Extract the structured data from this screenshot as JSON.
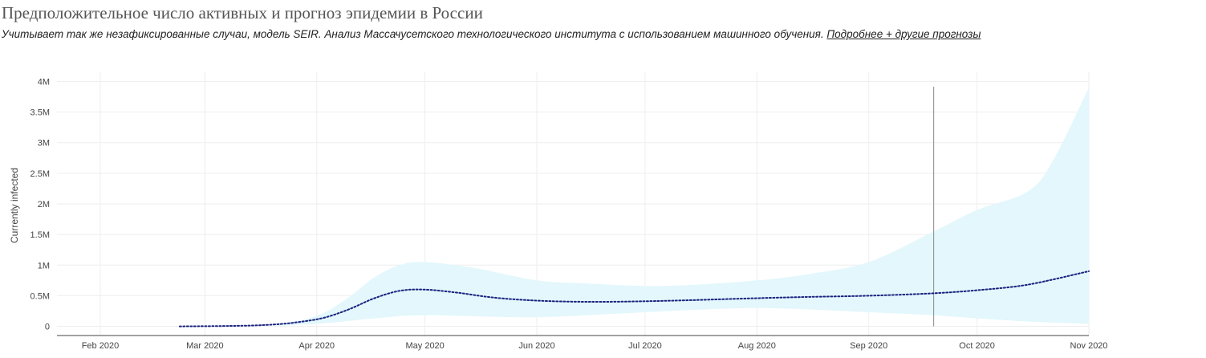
{
  "header": {
    "title": "Предположительное число активных и прогноз эпидемии в России",
    "subtitle": "Учитывает так же незафиксированные случаи, модель SEIR. Анализ Массачусетского технологического института с использованием машинного обучения. ",
    "link_label": "Подробнее + другие прогнозы"
  },
  "chart_data": {
    "type": "line",
    "xlabel": "",
    "ylabel": "Currently infected",
    "x_ticks": [
      "Feb 2020",
      "Mar 2020",
      "Apr 2020",
      "May 2020",
      "Jun 2020",
      "Jul 2020",
      "Aug 2020",
      "Sep 2020",
      "Oct 2020",
      "Nov 2020"
    ],
    "y_ticks": [
      "0",
      "0.5M",
      "1M",
      "1.5M",
      "2M",
      "2.5M",
      "3M",
      "3.5M",
      "4M"
    ],
    "xlim": [
      "2020-01-20",
      "2020-11-01"
    ],
    "ylim": [
      -150000,
      4150000
    ],
    "grid": true,
    "line_style": "dotted",
    "colors": {
      "line": "#1a237e",
      "band": "#e3f7fc",
      "marker": "#888888"
    },
    "marker_date": "2020-09-19",
    "series": [
      {
        "values": [
          [
            "2020-02-23",
            0
          ],
          [
            "2020-03-10",
            8000
          ],
          [
            "2020-03-20",
            30000
          ],
          [
            "2020-03-27",
            70000
          ],
          [
            "2020-04-03",
            140000
          ],
          [
            "2020-04-10",
            280000
          ],
          [
            "2020-04-17",
            460000
          ],
          [
            "2020-04-24",
            580000
          ],
          [
            "2020-05-01",
            600000
          ],
          [
            "2020-05-10",
            550000
          ],
          [
            "2020-05-20",
            470000
          ],
          [
            "2020-06-01",
            420000
          ],
          [
            "2020-06-15",
            400000
          ],
          [
            "2020-07-01",
            410000
          ],
          [
            "2020-07-15",
            430000
          ],
          [
            "2020-08-01",
            460000
          ],
          [
            "2020-08-15",
            480000
          ],
          [
            "2020-09-01",
            500000
          ],
          [
            "2020-09-19",
            540000
          ],
          [
            "2020-10-01",
            590000
          ],
          [
            "2020-10-15",
            680000
          ],
          [
            "2020-11-01",
            900000
          ]
        ]
      },
      {
        "values": [
          [
            "2020-03-20",
            30000
          ],
          [
            "2020-03-27",
            90000
          ],
          [
            "2020-04-03",
            220000
          ],
          [
            "2020-04-10",
            480000
          ],
          [
            "2020-04-17",
            800000
          ],
          [
            "2020-04-24",
            1000000
          ],
          [
            "2020-05-01",
            1050000
          ],
          [
            "2020-05-15",
            950000
          ],
          [
            "2020-06-01",
            750000
          ],
          [
            "2020-06-15",
            700000
          ],
          [
            "2020-07-01",
            660000
          ],
          [
            "2020-07-15",
            680000
          ],
          [
            "2020-08-01",
            750000
          ],
          [
            "2020-08-15",
            850000
          ],
          [
            "2020-09-01",
            1050000
          ],
          [
            "2020-09-19",
            1550000
          ],
          [
            "2020-10-01",
            1900000
          ],
          [
            "2020-10-15",
            2200000
          ],
          [
            "2020-10-22",
            2700000
          ],
          [
            "2020-11-01",
            3900000
          ]
        ]
      },
      {
        "values": [
          [
            "2020-03-20",
            10000
          ],
          [
            "2020-04-03",
            50000
          ],
          [
            "2020-04-17",
            130000
          ],
          [
            "2020-05-01",
            180000
          ],
          [
            "2020-06-01",
            150000
          ],
          [
            "2020-07-01",
            230000
          ],
          [
            "2020-08-01",
            300000
          ],
          [
            "2020-09-01",
            230000
          ],
          [
            "2020-09-19",
            180000
          ],
          [
            "2020-10-01",
            130000
          ],
          [
            "2020-10-15",
            80000
          ],
          [
            "2020-11-01",
            40000
          ]
        ]
      }
    ]
  }
}
